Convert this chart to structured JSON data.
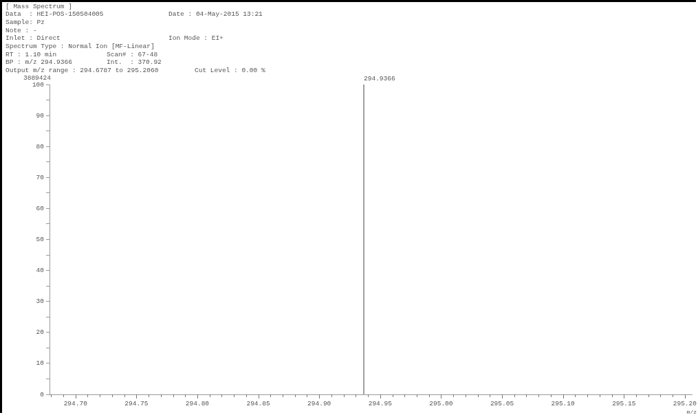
{
  "chart_data": {
    "type": "bar",
    "title": "[ Mass Spectrum ]",
    "xlabel": "m/z",
    "annotations": [
      "Data  : HEI-POS-150504005",
      "Date : 04-May-2015 13:21",
      "Sample: Pz",
      "Note : -",
      "Inlet : Direct",
      "Ion Mode : EI+",
      "Spectrum Type : Normal Ion [MF-Linear]",
      "RT : 1.10 min",
      "Scan# : 67-48",
      "BP : m/z 294.9366",
      "Int.  : 370.92",
      "Output m/z range : 294.6787 to 295.2060",
      "Cut Level : 0.00 %",
      "3889424",
      {
        "text": "294.9366",
        "x": 294.9366,
        "y": 100
      }
    ],
    "x": [
      294.9366
    ],
    "values": [
      100
    ],
    "color": "#8c8c8c",
    "xlim": [
      294.6787,
      295.206
    ],
    "xticks": [
      {
        "value": 294.68,
        "label": null
      },
      {
        "value": 294.69,
        "label": null
      },
      {
        "value": 294.7,
        "label": "294.70"
      },
      {
        "value": 294.71,
        "label": null
      },
      {
        "value": 294.72,
        "label": null
      },
      {
        "value": 294.73,
        "label": null
      },
      {
        "value": 294.74,
        "label": null
      },
      {
        "value": 294.75,
        "label": "294.75"
      },
      {
        "value": 294.76,
        "label": null
      },
      {
        "value": 294.77,
        "label": null
      },
      {
        "value": 294.78,
        "label": null
      },
      {
        "value": 294.79,
        "label": null
      },
      {
        "value": 294.8,
        "label": "294.80"
      },
      {
        "value": 294.81,
        "label": null
      },
      {
        "value": 294.82,
        "label": null
      },
      {
        "value": 294.83,
        "label": null
      },
      {
        "value": 294.84,
        "label": null
      },
      {
        "value": 294.85,
        "label": "294.85"
      },
      {
        "value": 294.86,
        "label": null
      },
      {
        "value": 294.87,
        "label": null
      },
      {
        "value": 294.88,
        "label": null
      },
      {
        "value": 294.89,
        "label": null
      },
      {
        "value": 294.9,
        "label": "294.90"
      },
      {
        "value": 294.91,
        "label": null
      },
      {
        "value": 294.92,
        "label": null
      },
      {
        "value": 294.93,
        "label": null
      },
      {
        "value": 294.94,
        "label": null
      },
      {
        "value": 294.95,
        "label": "294.95"
      },
      {
        "value": 294.96,
        "label": null
      },
      {
        "value": 294.97,
        "label": null
      },
      {
        "value": 294.98,
        "label": null
      },
      {
        "value": 294.99,
        "label": null
      },
      {
        "value": 295.0,
        "label": "295.00"
      },
      {
        "value": 295.01,
        "label": null
      },
      {
        "value": 295.02,
        "label": null
      },
      {
        "value": 295.03,
        "label": null
      },
      {
        "value": 295.04,
        "label": null
      },
      {
        "value": 295.05,
        "label": "295.05"
      },
      {
        "value": 295.06,
        "label": null
      },
      {
        "value": 295.07,
        "label": null
      },
      {
        "value": 295.08,
        "label": null
      },
      {
        "value": 295.09,
        "label": null
      },
      {
        "value": 295.1,
        "label": "295.10"
      },
      {
        "value": 295.11,
        "label": null
      },
      {
        "value": 295.12,
        "label": null
      },
      {
        "value": 295.13,
        "label": null
      },
      {
        "value": 295.14,
        "label": null
      },
      {
        "value": 295.15,
        "label": "295.15"
      },
      {
        "value": 295.16,
        "label": null
      },
      {
        "value": 295.17,
        "label": null
      },
      {
        "value": 295.18,
        "label": null
      },
      {
        "value": 295.19,
        "label": null
      },
      {
        "value": 295.2,
        "label": "295.20"
      }
    ],
    "ylim": [
      0,
      100
    ],
    "yticks": [
      0,
      {
        "value": 5,
        "label": null
      },
      10,
      {
        "value": 15,
        "label": null
      },
      20,
      {
        "value": 25,
        "label": null
      },
      30,
      {
        "value": 35,
        "label": null
      },
      40,
      {
        "value": 45,
        "label": null
      },
      50,
      {
        "value": 55,
        "label": null
      },
      60,
      {
        "value": 65,
        "label": null
      },
      70,
      {
        "value": 75,
        "label": null
      },
      80,
      {
        "value": 85,
        "label": null
      },
      90,
      {
        "value": 95,
        "label": null
      },
      100
    ],
    "grid": false,
    "legend": false
  }
}
